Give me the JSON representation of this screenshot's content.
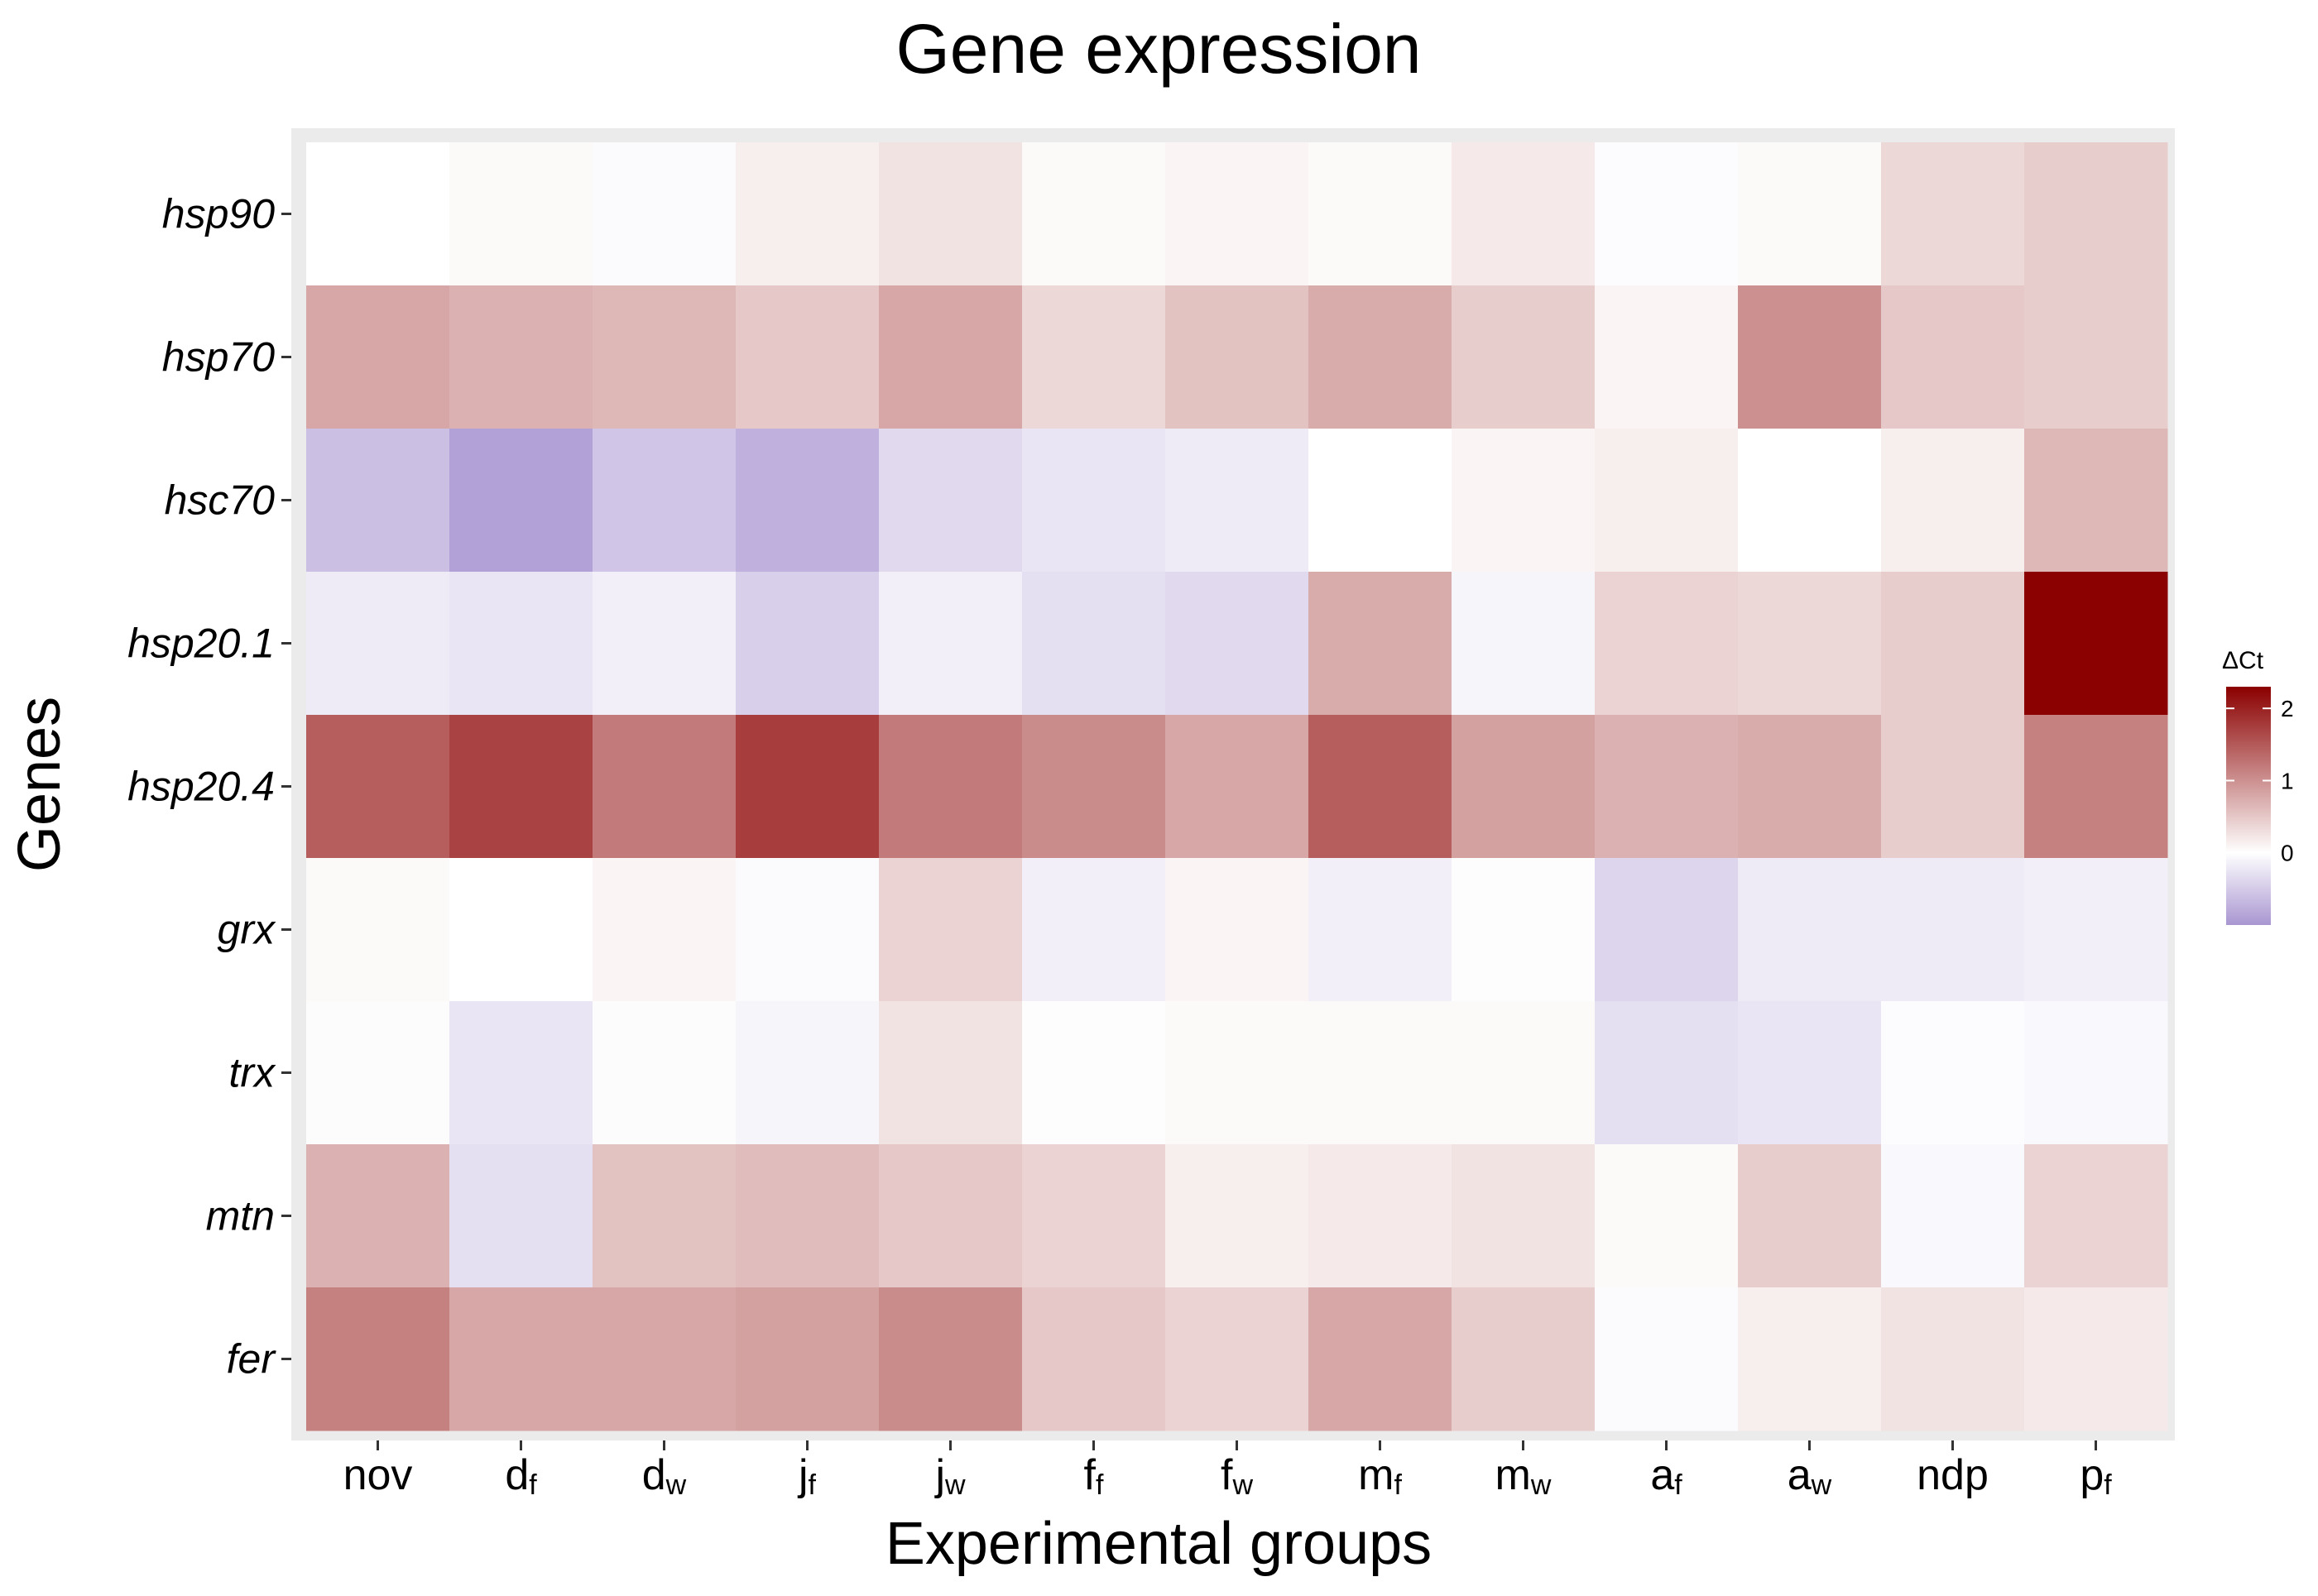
{
  "chart_data": {
    "type": "heatmap",
    "title": "Gene expression",
    "xlabel": "Experimental groups",
    "ylabel": "Genes",
    "x_categories": [
      {
        "main": "nov",
        "sub": ""
      },
      {
        "main": "d",
        "sub": "f"
      },
      {
        "main": "d",
        "sub": "w"
      },
      {
        "main": "j",
        "sub": "f"
      },
      {
        "main": "j",
        "sub": "w"
      },
      {
        "main": "f",
        "sub": "f"
      },
      {
        "main": "f",
        "sub": "w"
      },
      {
        "main": "m",
        "sub": "f"
      },
      {
        "main": "m",
        "sub": "w"
      },
      {
        "main": "a",
        "sub": "f"
      },
      {
        "main": "a",
        "sub": "w"
      },
      {
        "main": "ndp",
        "sub": ""
      },
      {
        "main": "p",
        "sub": "f"
      }
    ],
    "y_categories": [
      "hsp90",
      "hsp70",
      "hsc70",
      "hsp20.1",
      "hsp20.4",
      "grx",
      "trx",
      "mtn",
      "fer"
    ],
    "values": [
      [
        0.0,
        0.05,
        -0.05,
        0.15,
        0.25,
        0.05,
        0.1,
        0.05,
        0.2,
        -0.03,
        0.05,
        0.35,
        0.45
      ],
      [
        0.8,
        0.7,
        0.65,
        0.5,
        0.8,
        0.35,
        0.55,
        0.75,
        0.45,
        0.1,
        1.0,
        0.5,
        0.45
      ],
      [
        -0.6,
        -0.9,
        -0.55,
        -0.75,
        -0.35,
        -0.25,
        -0.2,
        0.0,
        0.1,
        0.15,
        0.0,
        0.15,
        0.65
      ],
      [
        -0.2,
        -0.25,
        -0.15,
        -0.45,
        -0.15,
        -0.3,
        -0.35,
        0.75,
        -0.1,
        0.4,
        0.35,
        0.45,
        2.3
      ],
      [
        1.45,
        1.7,
        1.2,
        1.75,
        1.2,
        1.05,
        0.8,
        1.45,
        0.85,
        0.7,
        0.75,
        0.45,
        1.15
      ],
      [
        0.05,
        0.0,
        0.1,
        -0.05,
        0.4,
        -0.15,
        0.1,
        -0.15,
        -0.02,
        -0.4,
        -0.2,
        -0.2,
        -0.15
      ],
      [
        0.03,
        -0.25,
        0.03,
        -0.1,
        0.25,
        -0.02,
        0.05,
        0.05,
        0.05,
        -0.3,
        -0.25,
        -0.03,
        -0.07
      ],
      [
        0.7,
        -0.3,
        0.55,
        0.6,
        0.5,
        0.4,
        0.15,
        0.2,
        0.25,
        0.05,
        0.45,
        -0.07,
        0.4
      ],
      [
        1.15,
        0.8,
        0.8,
        0.85,
        1.05,
        0.5,
        0.4,
        0.8,
        0.45,
        -0.05,
        0.15,
        0.25,
        0.2
      ]
    ],
    "color_scale": {
      "low": "#a996d1",
      "mid": "#ffffff",
      "high": "#8b0000",
      "min": -1,
      "mid_value": 0,
      "max": 2.3
    },
    "legend": {
      "title": "ΔCt",
      "ticks": [
        "2",
        "1",
        "0"
      ],
      "position": "right"
    },
    "panel_background": "#ebebeb",
    "grid": false
  }
}
